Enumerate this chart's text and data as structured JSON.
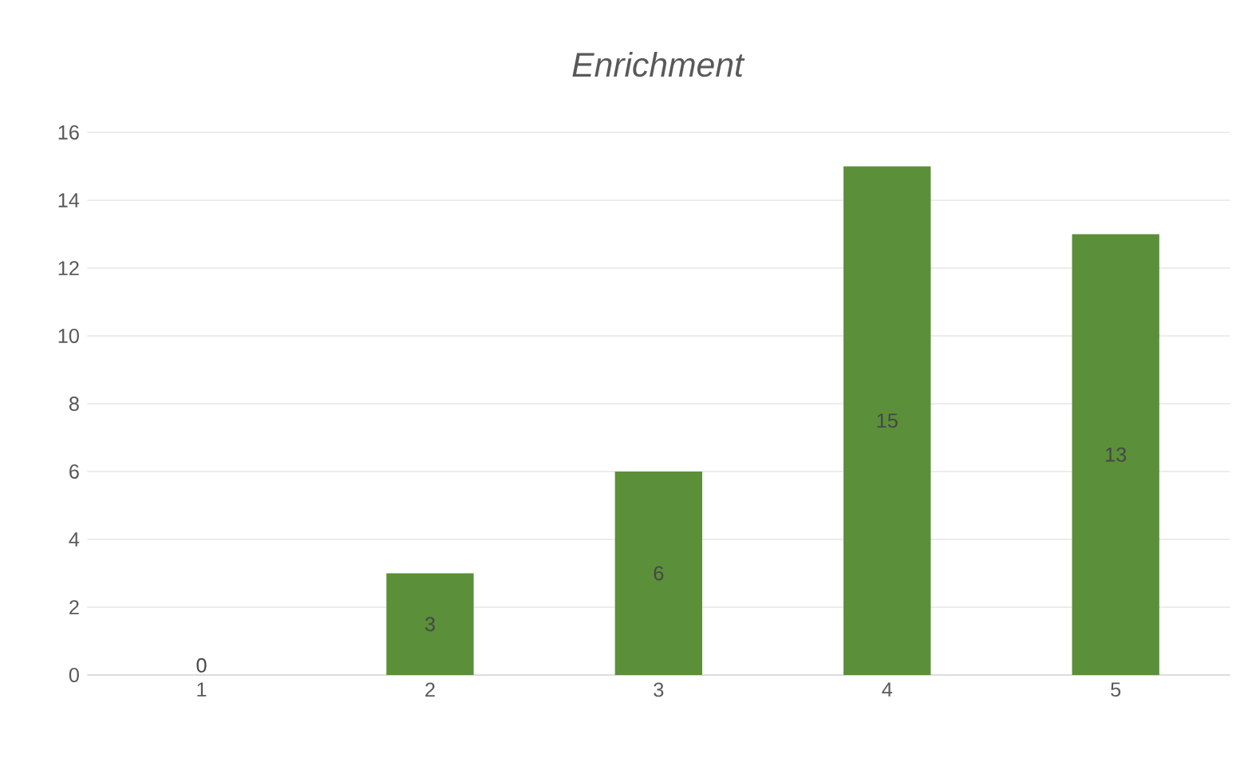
{
  "chart_data": {
    "type": "bar",
    "title": "Enrichment",
    "categories": [
      "1",
      "2",
      "3",
      "4",
      "5"
    ],
    "values": [
      0,
      3,
      6,
      15,
      13
    ],
    "color": "#5b8f3a",
    "ylim": [
      0,
      16
    ],
    "yticks": [
      0,
      2,
      4,
      6,
      8,
      10,
      12,
      14,
      16
    ],
    "grid": "y",
    "data_labels": true
  }
}
